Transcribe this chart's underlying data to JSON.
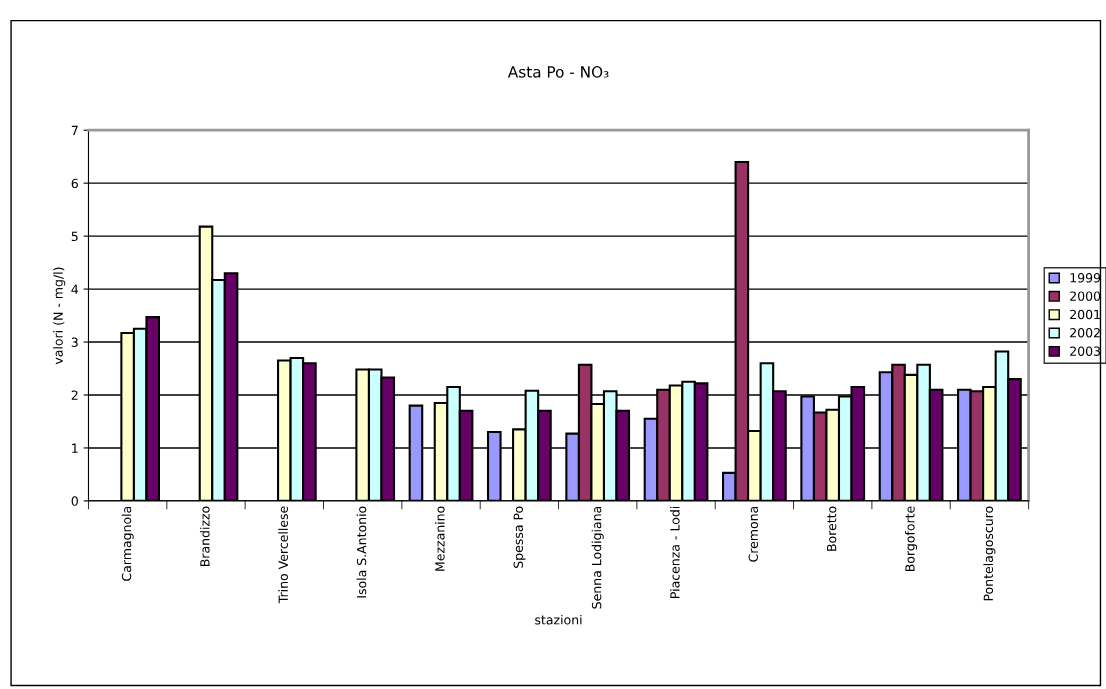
{
  "chart_data": {
    "type": "bar",
    "title": "Asta Po - NO₃",
    "xlabel": "stazioni",
    "ylabel": "valori (N - mg/l)",
    "categories": [
      "Carmagnola",
      "Brandizzo",
      "Trino Vercellese",
      "Isola S.Antonio",
      "Mezzanino",
      "Spessa Po",
      "Senna Lodigiana",
      "Piacenza - Lodi",
      "Cremona",
      "Boretto",
      "Borgoforte",
      "Pontelagoscuro"
    ],
    "series": [
      {
        "name": "1999",
        "color": "#9999ff",
        "values": [
          null,
          null,
          null,
          null,
          1.8,
          1.3,
          1.27,
          1.55,
          0.53,
          1.97,
          2.43,
          2.1
        ]
      },
      {
        "name": "2000",
        "color": "#993366",
        "values": [
          null,
          null,
          null,
          null,
          null,
          null,
          2.57,
          2.1,
          6.4,
          1.67,
          2.57,
          2.07
        ]
      },
      {
        "name": "2001",
        "color": "#ffffcc",
        "values": [
          3.17,
          5.18,
          2.65,
          2.48,
          1.85,
          1.35,
          1.83,
          2.18,
          1.32,
          1.72,
          2.38,
          2.15
        ]
      },
      {
        "name": "2002",
        "color": "#ccffff",
        "values": [
          3.25,
          4.17,
          2.7,
          2.48,
          2.15,
          2.08,
          2.07,
          2.25,
          2.6,
          1.97,
          2.57,
          2.82
        ]
      },
      {
        "name": "2003",
        "color": "#660066",
        "values": [
          3.47,
          4.3,
          2.6,
          2.33,
          1.7,
          1.7,
          1.7,
          2.22,
          2.07,
          2.15,
          2.1,
          2.3
        ]
      }
    ],
    "ylim": [
      0,
      7
    ],
    "yticks": [
      0,
      1,
      2,
      3,
      4,
      5,
      6,
      7
    ],
    "grid": "y",
    "legend": "right"
  }
}
